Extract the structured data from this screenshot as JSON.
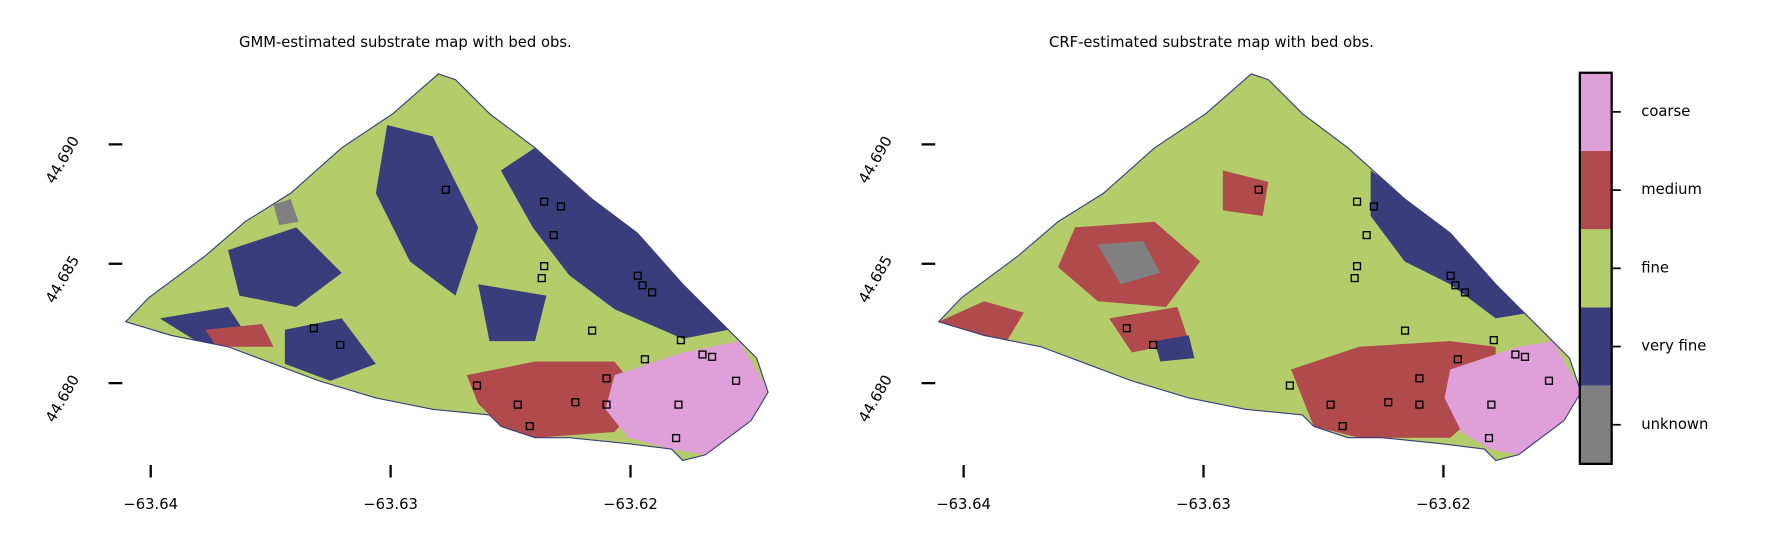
{
  "panels": [
    {
      "title": "GMM-estimated substrate map with bed obs."
    },
    {
      "title": "CRF-estimated substrate map with bed obs."
    }
  ],
  "xticks": [
    {
      "value": -63.64,
      "label": "−63.64"
    },
    {
      "value": -63.63,
      "label": "−63.63"
    },
    {
      "value": -63.62,
      "label": "−63.62"
    }
  ],
  "yticks": [
    {
      "value": 44.68,
      "label": "44.680"
    },
    {
      "value": 44.685,
      "label": "44.685"
    },
    {
      "value": 44.69,
      "label": "44.690"
    }
  ],
  "observations": {
    "lon": [
      -63.6277,
      -63.6236,
      -63.6229,
      -63.6232,
      -63.6236,
      -63.6237,
      -63.6197,
      -63.6195,
      -63.6191,
      -63.6216,
      -63.6332,
      -63.6321,
      -63.6179,
      -63.6194,
      -63.617,
      -63.6166,
      -63.6156,
      -63.6264,
      -63.621,
      -63.6247,
      -63.6223,
      -63.621,
      -63.618,
      -63.6242,
      -63.6181
    ],
    "lat": [
      44.6881,
      44.6876,
      44.6874,
      44.6862,
      44.6849,
      44.6844,
      44.6845,
      44.6841,
      44.6838,
      44.6822,
      44.6823,
      44.6816,
      44.6818,
      44.681,
      44.6812,
      44.6811,
      44.6801,
      44.6799,
      44.6802,
      44.6791,
      44.6792,
      44.6791,
      44.6791,
      44.6782,
      44.6777
    ]
  },
  "colorbar": {
    "categories": [
      "unknown",
      "very fine",
      "fine",
      "medium",
      "coarse"
    ],
    "colors": [
      "#808080",
      "#3a3d7c",
      "#b5cc6a",
      "#b04a4c",
      "#df9fd8"
    ]
  }
}
